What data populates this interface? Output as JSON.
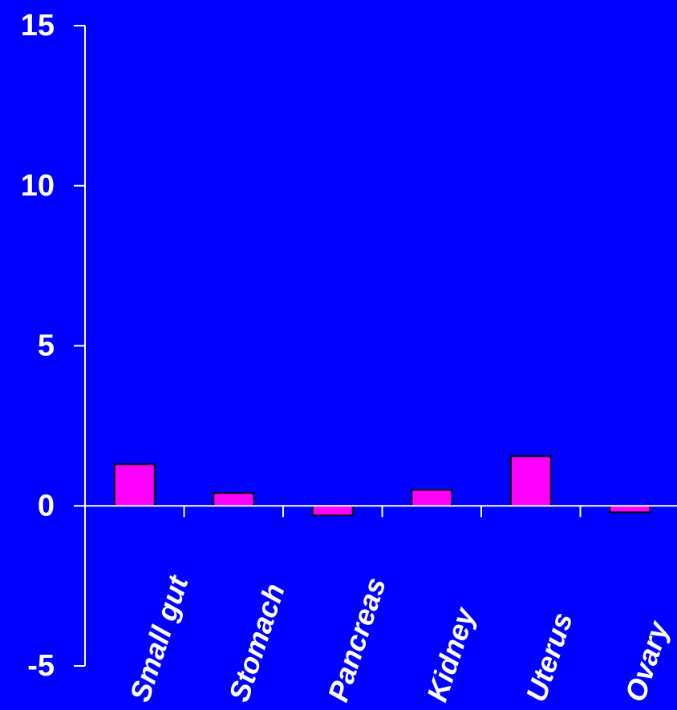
{
  "colors": {
    "background": "#0000FF",
    "bar_fill": "#FF00FF",
    "bar_stroke": "#000000",
    "axis": "#FFFFFF",
    "text": "#FFFFFF"
  },
  "chart_data": {
    "type": "bar",
    "title": "",
    "xlabel": "",
    "ylabel": "",
    "categories": [
      "Small gut",
      "Stomach",
      "Pancreas",
      "Kidney",
      "Uterus",
      "Ovary"
    ],
    "values": [
      1.3,
      0.4,
      -0.3,
      0.5,
      1.55,
      -0.2
    ],
    "ylim": [
      -5,
      15
    ],
    "yticks": [
      -5,
      0,
      5,
      10,
      15
    ],
    "ytick_labels": [
      "-5",
      "0",
      "5",
      "10",
      "15"
    ],
    "grid": false,
    "legend": "none"
  }
}
